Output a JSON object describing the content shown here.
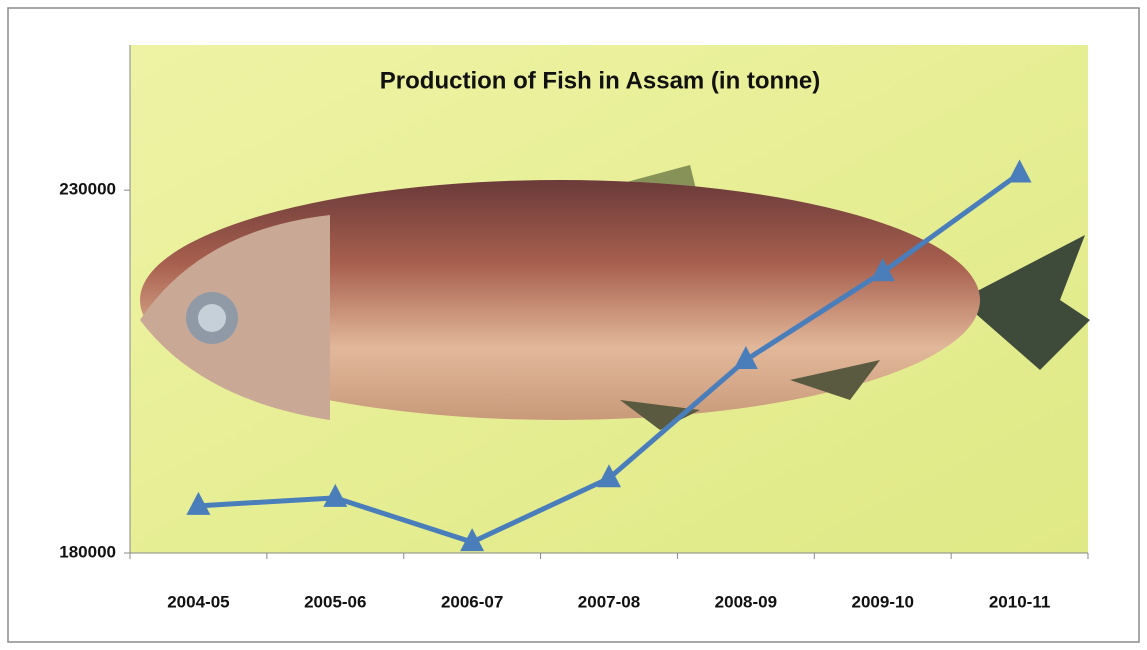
{
  "chart_data": {
    "type": "line",
    "title": "Production of Fish in Assam (in tonne)",
    "categories": [
      "2004-05",
      "2005-06",
      "2006-07",
      "2007-08",
      "2008-09",
      "2009-10",
      "2010-11"
    ],
    "values": [
      186500,
      187600,
      181500,
      190300,
      206600,
      218700,
      232300
    ],
    "color": "#4a7ebb",
    "ylim": [
      180000,
      250000
    ],
    "yticks": [
      180000,
      230000
    ]
  }
}
